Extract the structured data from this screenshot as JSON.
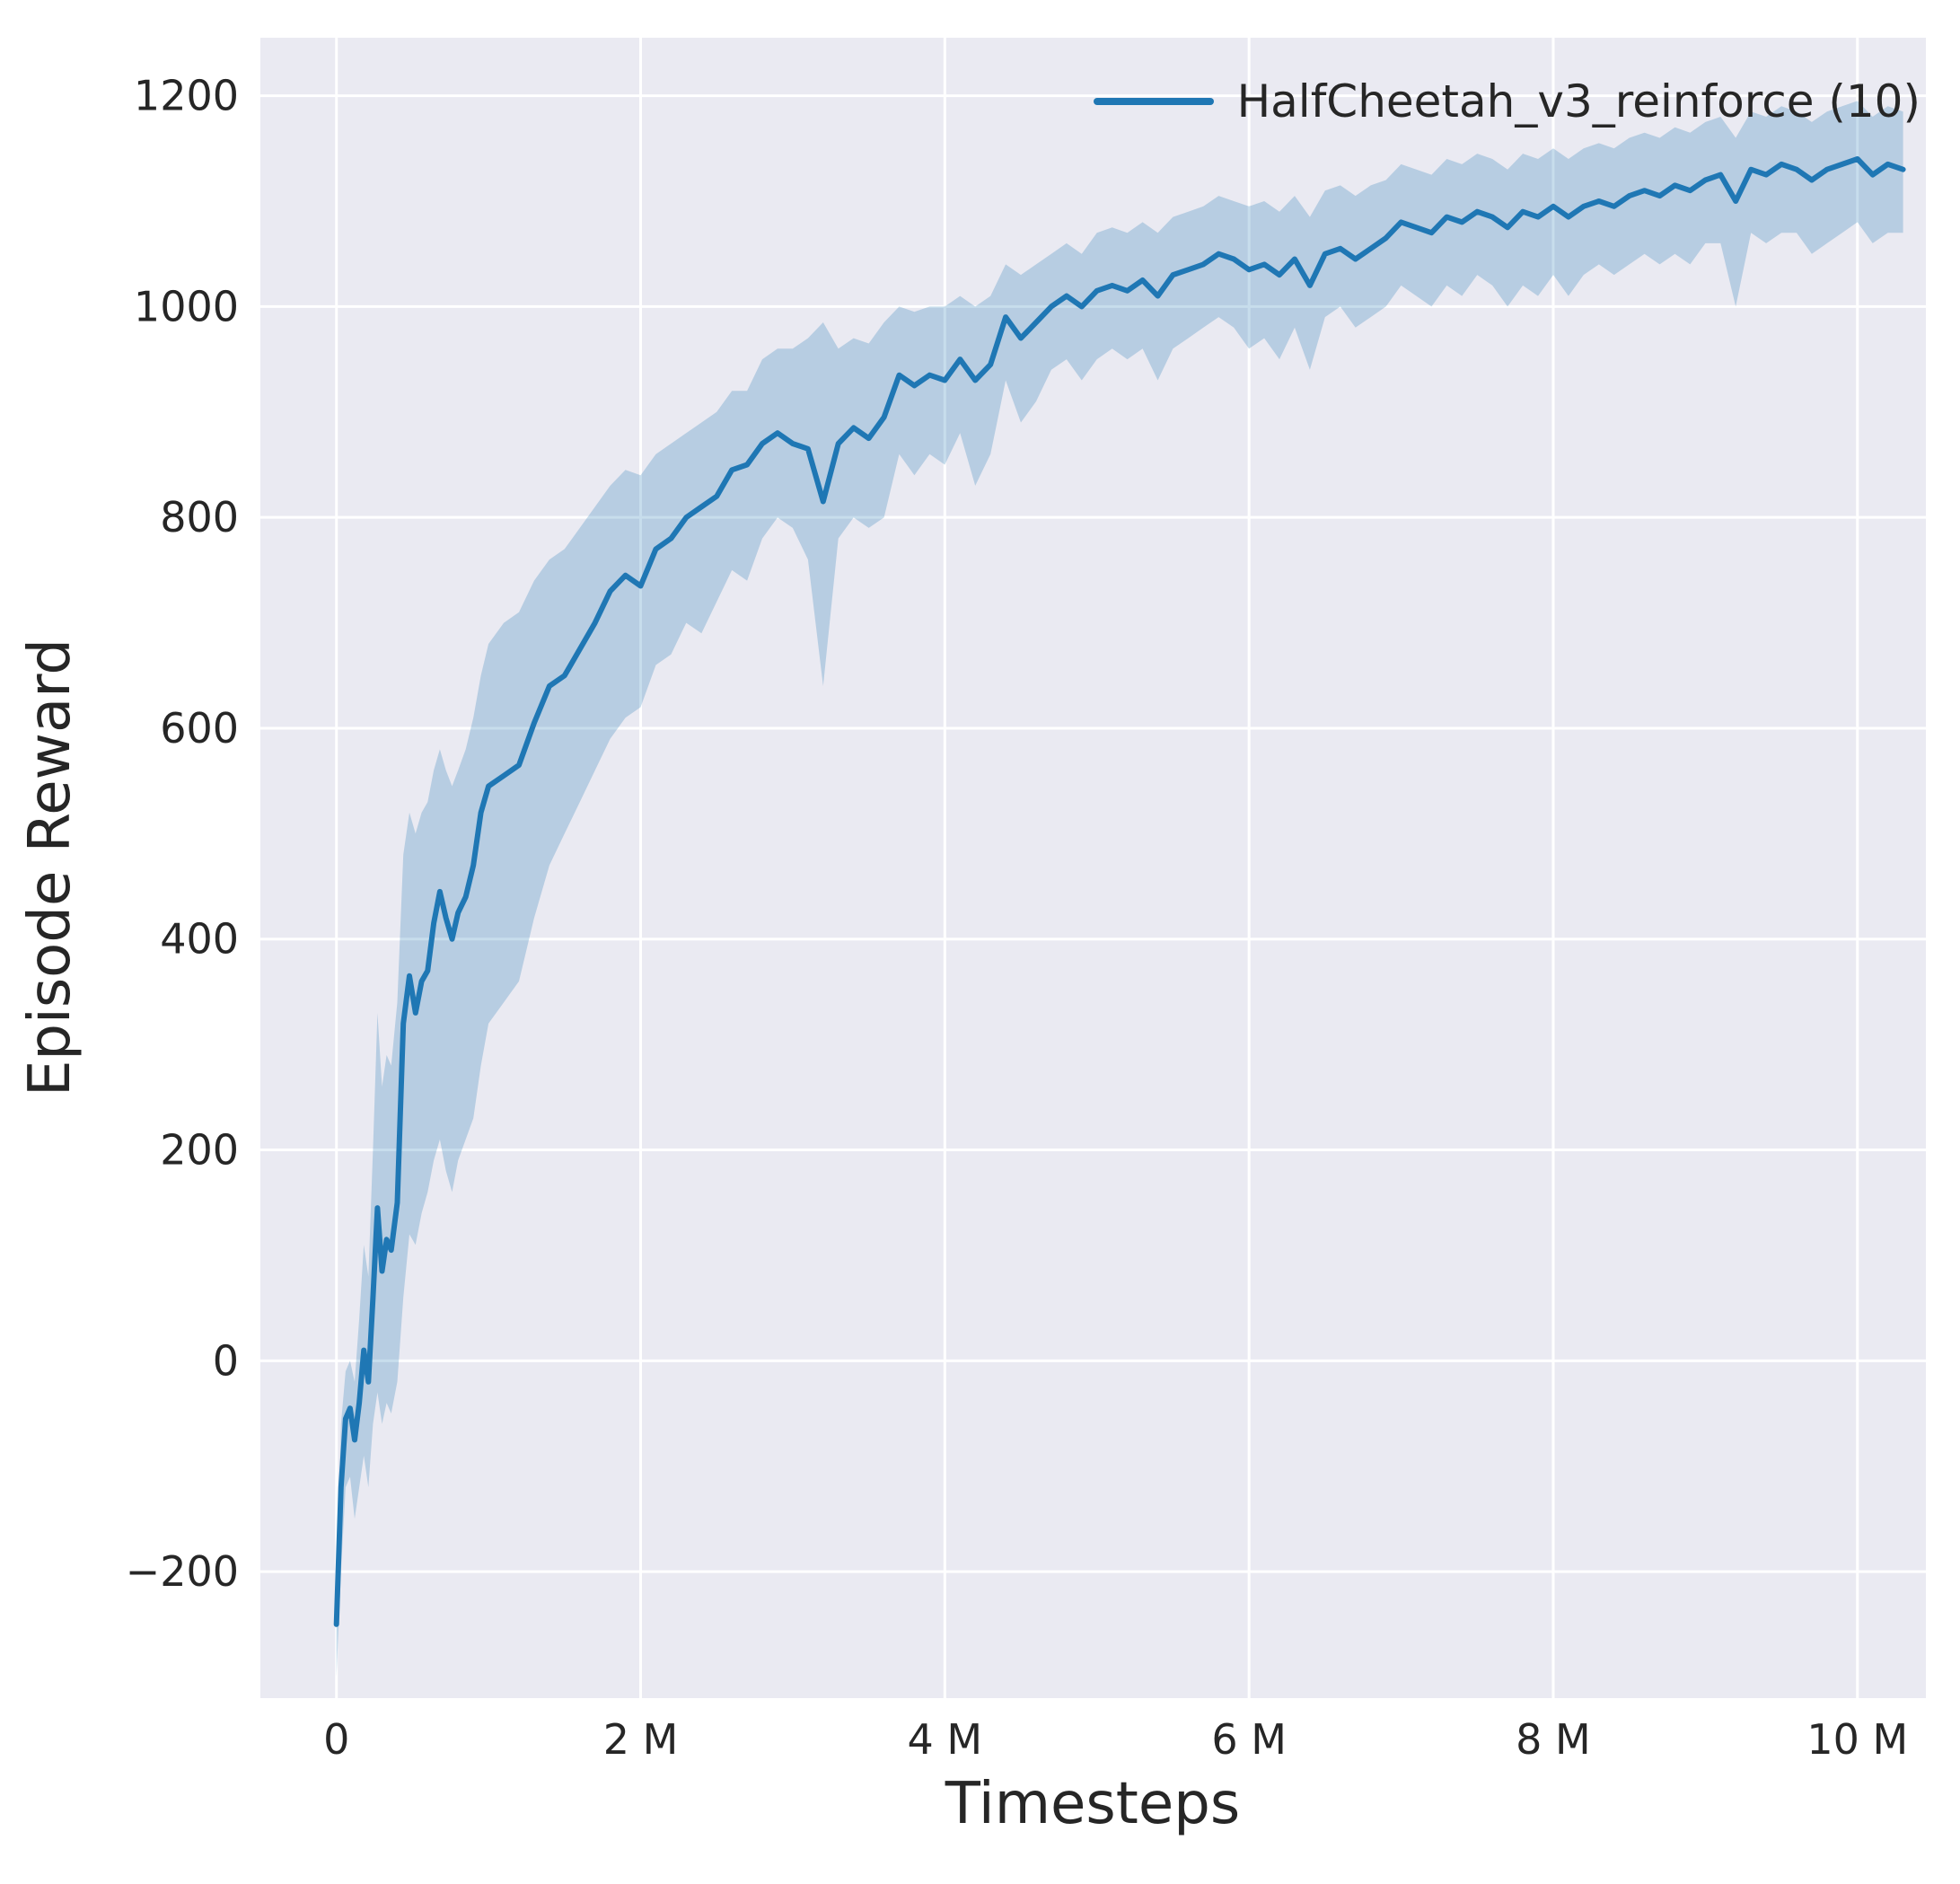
{
  "figure": {
    "background": "#ffffff",
    "panel_background": "#eaeaf2",
    "grid_color": "#ffffff",
    "text_color": "#262626",
    "line_color": "#1f77b4",
    "band_color": "#1f77b4",
    "band_opacity": 0.25
  },
  "legend": {
    "label": "HalfCheetah_v3_reinforce (10)",
    "position": "upper right"
  },
  "chart_data": {
    "type": "line",
    "title": "",
    "xlabel": "Timesteps",
    "ylabel": "Episode Reward",
    "x_units": "timesteps (millions)",
    "grid": true,
    "legend_position": "upper right",
    "xlim_m": [
      -0.5,
      10.45
    ],
    "ylim": [
      -320,
      1255
    ],
    "xticks": [
      {
        "value_m": 0,
        "label": "0"
      },
      {
        "value_m": 2,
        "label": "2 M"
      },
      {
        "value_m": 4,
        "label": "4 M"
      },
      {
        "value_m": 6,
        "label": "6 M"
      },
      {
        "value_m": 8,
        "label": "8 M"
      },
      {
        "value_m": 10,
        "label": "10 M"
      }
    ],
    "yticks": [
      {
        "value": -200,
        "label": "−200"
      },
      {
        "value": 0,
        "label": "0"
      },
      {
        "value": 200,
        "label": "200"
      },
      {
        "value": 400,
        "label": "400"
      },
      {
        "value": 600,
        "label": "600"
      },
      {
        "value": 800,
        "label": "800"
      },
      {
        "value": 1000,
        "label": "1000"
      },
      {
        "value": 1200,
        "label": "1200"
      }
    ],
    "series": [
      {
        "name": "HalfCheetah_v3_reinforce (10)",
        "color": "#1f77b4",
        "has_shaded_band": true,
        "x_m": [
          0.0,
          0.03,
          0.06,
          0.09,
          0.12,
          0.15,
          0.18,
          0.21,
          0.24,
          0.27,
          0.3,
          0.33,
          0.36,
          0.4,
          0.44,
          0.48,
          0.52,
          0.56,
          0.6,
          0.64,
          0.68,
          0.72,
          0.76,
          0.8,
          0.85,
          0.9,
          0.95,
          1.0,
          1.1,
          1.2,
          1.3,
          1.4,
          1.5,
          1.6,
          1.7,
          1.8,
          1.9,
          2.0,
          2.1,
          2.2,
          2.3,
          2.4,
          2.5,
          2.6,
          2.7,
          2.8,
          2.9,
          3.0,
          3.1,
          3.2,
          3.3,
          3.4,
          3.5,
          3.6,
          3.7,
          3.8,
          3.9,
          4.0,
          4.1,
          4.2,
          4.3,
          4.4,
          4.5,
          4.6,
          4.7,
          4.8,
          4.9,
          5.0,
          5.1,
          5.2,
          5.3,
          5.4,
          5.5,
          5.6,
          5.7,
          5.8,
          5.9,
          6.0,
          6.1,
          6.2,
          6.3,
          6.4,
          6.5,
          6.6,
          6.7,
          6.8,
          6.9,
          7.0,
          7.1,
          7.2,
          7.3,
          7.4,
          7.5,
          7.6,
          7.7,
          7.8,
          7.9,
          8.0,
          8.1,
          8.2,
          8.3,
          8.4,
          8.5,
          8.6,
          8.7,
          8.8,
          8.9,
          9.0,
          9.1,
          9.2,
          9.3,
          9.4,
          9.5,
          9.6,
          9.7,
          9.8,
          9.9,
          10.0,
          10.1,
          10.2,
          10.3
        ],
        "mean": [
          -250,
          -120,
          -55,
          -45,
          -75,
          -40,
          10,
          -20,
          60,
          145,
          85,
          115,
          105,
          150,
          320,
          365,
          330,
          360,
          370,
          415,
          445,
          420,
          400,
          425,
          440,
          470,
          520,
          545,
          555,
          565,
          605,
          640,
          650,
          675,
          700,
          730,
          745,
          735,
          770,
          780,
          800,
          810,
          820,
          845,
          850,
          870,
          880,
          870,
          865,
          815,
          870,
          885,
          875,
          895,
          935,
          925,
          935,
          930,
          950,
          930,
          945,
          990,
          970,
          985,
          1000,
          1010,
          1000,
          1015,
          1020,
          1015,
          1025,
          1010,
          1030,
          1035,
          1040,
          1050,
          1045,
          1035,
          1040,
          1030,
          1045,
          1020,
          1050,
          1055,
          1045,
          1055,
          1065,
          1080,
          1075,
          1070,
          1085,
          1080,
          1090,
          1085,
          1075,
          1090,
          1085,
          1095,
          1085,
          1095,
          1100,
          1095,
          1105,
          1110,
          1105,
          1115,
          1110,
          1120,
          1125,
          1100,
          1130,
          1125,
          1135,
          1130,
          1120,
          1130,
          1135,
          1140,
          1125,
          1135,
          1130
        ],
        "band_low": [
          -300,
          -200,
          -120,
          -110,
          -150,
          -120,
          -90,
          -120,
          -60,
          -30,
          -60,
          -40,
          -50,
          -20,
          60,
          120,
          110,
          140,
          160,
          190,
          210,
          180,
          160,
          190,
          210,
          230,
          280,
          320,
          340,
          360,
          420,
          470,
          500,
          530,
          560,
          590,
          610,
          620,
          660,
          670,
          700,
          690,
          720,
          750,
          740,
          780,
          800,
          790,
          760,
          640,
          780,
          800,
          790,
          800,
          860,
          840,
          860,
          850,
          880,
          830,
          860,
          930,
          890,
          910,
          940,
          950,
          930,
          950,
          960,
          950,
          960,
          930,
          960,
          970,
          980,
          990,
          980,
          960,
          970,
          950,
          980,
          940,
          990,
          1000,
          980,
          990,
          1000,
          1020,
          1010,
          1000,
          1020,
          1010,
          1030,
          1020,
          1000,
          1020,
          1010,
          1030,
          1010,
          1030,
          1040,
          1030,
          1040,
          1050,
          1040,
          1050,
          1040,
          1060,
          1060,
          1000,
          1070,
          1060,
          1070,
          1070,
          1050,
          1060,
          1070,
          1080,
          1060,
          1070,
          1070
        ],
        "band_high": [
          -220,
          -60,
          -10,
          0,
          -20,
          40,
          110,
          80,
          200,
          330,
          260,
          290,
          280,
          340,
          480,
          520,
          500,
          520,
          530,
          560,
          580,
          560,
          545,
          560,
          580,
          610,
          650,
          680,
          700,
          710,
          740,
          760,
          770,
          790,
          810,
          830,
          845,
          840,
          860,
          870,
          880,
          890,
          900,
          920,
          920,
          950,
          960,
          960,
          970,
          985,
          960,
          970,
          965,
          985,
          1000,
          995,
          1000,
          1000,
          1010,
          1000,
          1010,
          1040,
          1030,
          1040,
          1050,
          1060,
          1050,
          1070,
          1075,
          1070,
          1080,
          1070,
          1085,
          1090,
          1095,
          1105,
          1100,
          1095,
          1100,
          1090,
          1105,
          1085,
          1110,
          1115,
          1105,
          1115,
          1120,
          1135,
          1130,
          1125,
          1140,
          1135,
          1145,
          1140,
          1130,
          1145,
          1140,
          1150,
          1140,
          1150,
          1155,
          1150,
          1160,
          1165,
          1160,
          1170,
          1165,
          1175,
          1180,
          1160,
          1185,
          1180,
          1190,
          1185,
          1175,
          1185,
          1190,
          1195,
          1180,
          1190,
          1185
        ]
      }
    ]
  }
}
